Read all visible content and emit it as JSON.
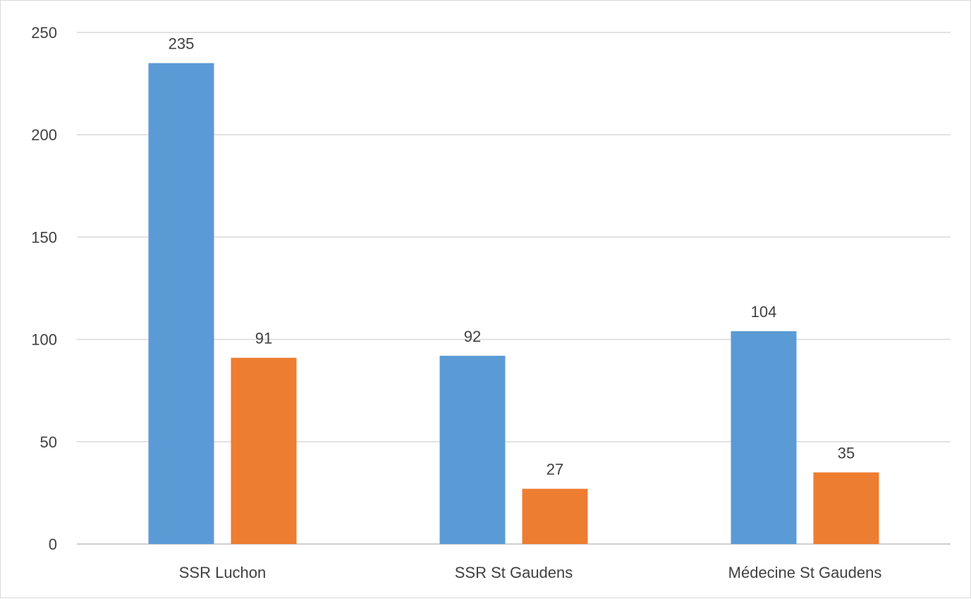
{
  "chart_data": {
    "type": "bar",
    "categories": [
      "SSR Luchon",
      "SSR St Gaudens",
      "Médecine St Gaudens"
    ],
    "series": [
      {
        "values": [
          235,
          92,
          104
        ],
        "color": "#5B9BD5"
      },
      {
        "values": [
          91,
          27,
          35
        ],
        "color": "#ED7D31"
      }
    ],
    "y_ticks": [
      "0",
      "50",
      "100",
      "150",
      "200",
      "250"
    ],
    "ylim": [
      0,
      250
    ],
    "grid": true,
    "legend": "none",
    "data_labels": true
  }
}
